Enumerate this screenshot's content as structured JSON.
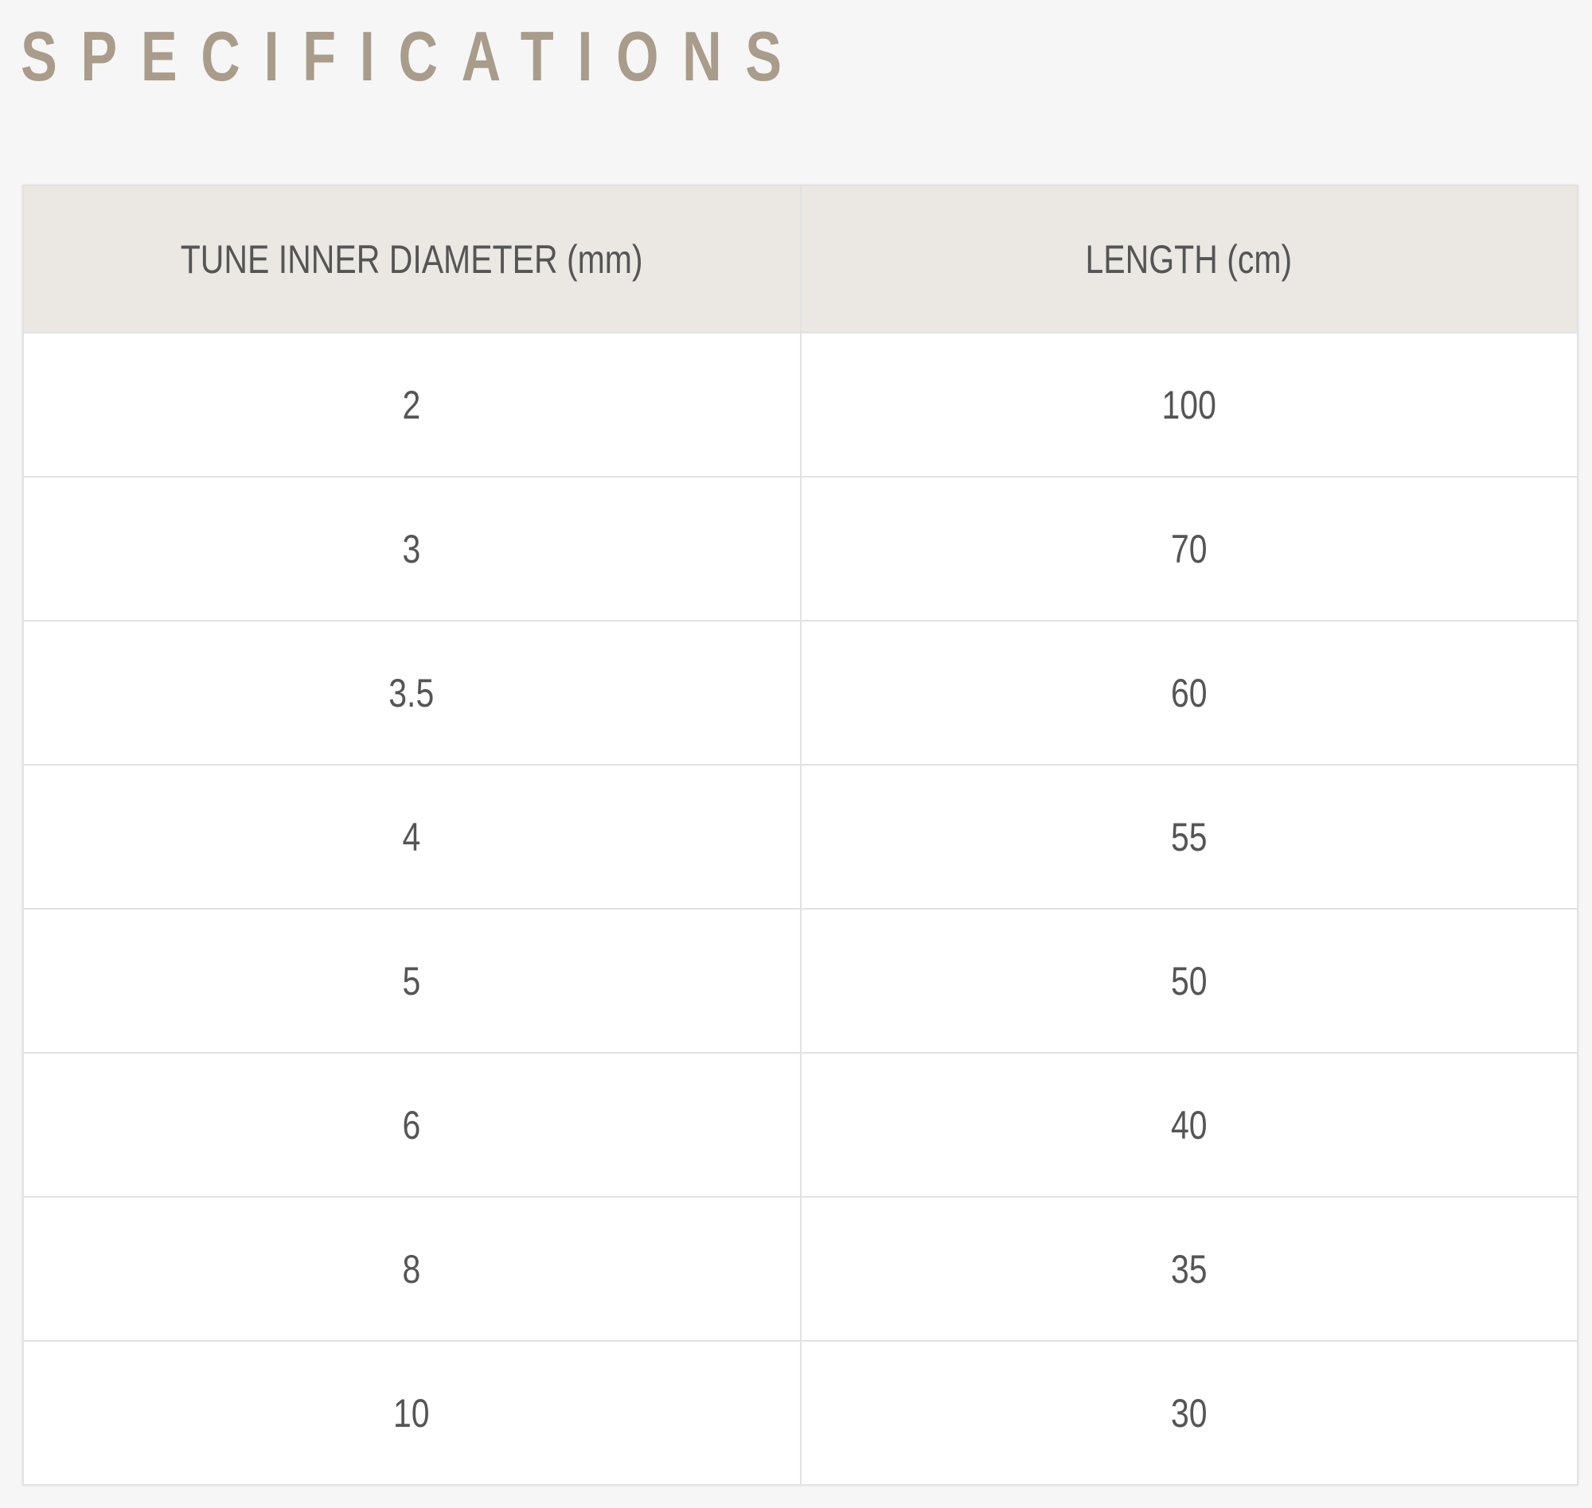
{
  "title": "SPECIFICATIONS",
  "table": {
    "headers": [
      "TUNE INNER DIAMETER (mm)",
      "LENGTH (cm)"
    ],
    "rows": [
      [
        "2",
        "100"
      ],
      [
        "3",
        "70"
      ],
      [
        "3.5",
        "60"
      ],
      [
        "4",
        "55"
      ],
      [
        "5",
        "50"
      ],
      [
        "6",
        "40"
      ],
      [
        "8",
        "35"
      ],
      [
        "10",
        "30"
      ]
    ]
  },
  "colors": {
    "title": "#a99c8b",
    "header_bg": "#ebe8e3",
    "text": "#555555",
    "page_bg": "#f6f6f6"
  }
}
